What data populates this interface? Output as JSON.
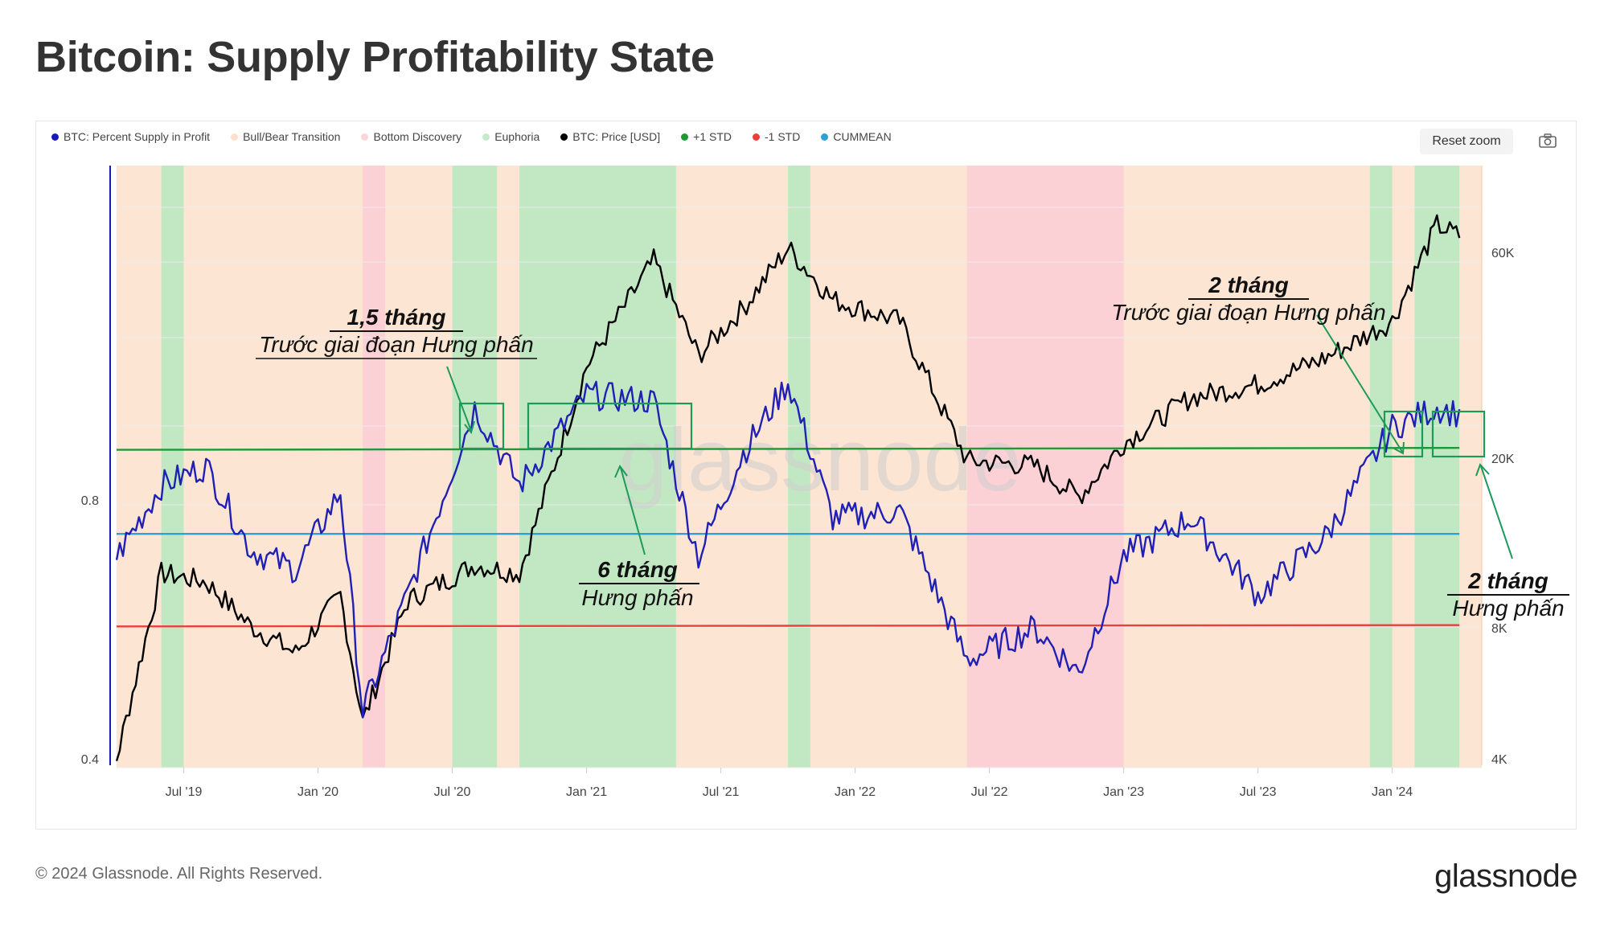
{
  "page": {
    "title": "Bitcoin: Supply Profitability State",
    "copyright": "© 2024 Glassnode. All Rights Reserved.",
    "brand": "glassnode",
    "watermark": "glassnode",
    "reset_zoom_label": "Reset zoom"
  },
  "legend": [
    {
      "label": "BTC: Percent Supply in Profit",
      "color": "#1a1ab8"
    },
    {
      "label": "Bull/Bear Transition",
      "color": "#fce0cc"
    },
    {
      "label": "Bottom Discovery",
      "color": "#fdd5d9"
    },
    {
      "label": "Euphoria",
      "color": "#c5eac8"
    },
    {
      "label": "BTC: Price [USD]",
      "color": "#000000"
    },
    {
      "label": "+1 STD",
      "color": "#1d9a34"
    },
    {
      "label": "-1 STD",
      "color": "#e8413c"
    },
    {
      "label": "CUMMEAN",
      "color": "#2ea0d8"
    }
  ],
  "annotations": [
    {
      "bold": "1,5 tháng",
      "text": "Trước giai đoạn Hưng phấn"
    },
    {
      "bold": "6 tháng",
      "text": "Hưng phấn"
    },
    {
      "bold": "2 tháng",
      "text": "Trước giai đoạn Hưng phấn"
    },
    {
      "bold": "2 tháng",
      "text": "Hưng phấn"
    }
  ],
  "chart_data": {
    "type": "line",
    "x_ticks": [
      "Jul '19",
      "Jan '20",
      "Jul '20",
      "Jan '21",
      "Jul '21",
      "Jan '22",
      "Jul '22",
      "Jan '23",
      "Jul '23",
      "Jan '24"
    ],
    "left_axis_ticks": [
      "0.8",
      "0.4"
    ],
    "right_axis_ticks": [
      "60K",
      "20K",
      "8K",
      "4K"
    ],
    "right_axis_scale": "log",
    "bands": [
      {
        "state": "Bull/Bear Transition",
        "from": "2019-04",
        "to": "2019-07"
      },
      {
        "state": "Euphoria",
        "from": "2019-06",
        "to": "2019-07"
      },
      {
        "state": "Bottom Discovery",
        "from": "2020-03",
        "to": "2020-04"
      },
      {
        "state": "Euphoria",
        "from": "2020-07",
        "to": "2020-09"
      },
      {
        "state": "Euphoria",
        "from": "2020-10",
        "to": "2021-05"
      },
      {
        "state": "Euphoria",
        "from": "2021-10",
        "to": "2021-11"
      },
      {
        "state": "Bottom Discovery",
        "from": "2022-06",
        "to": "2023-01"
      },
      {
        "state": "Euphoria",
        "from": "2023-12",
        "to": "2024-01"
      },
      {
        "state": "Euphoria",
        "from": "2024-02",
        "to": "2024-04"
      }
    ],
    "series": [
      {
        "name": "BTC: Percent Supply in Profit",
        "x": [
          "2019-04",
          "2019-06",
          "2019-08",
          "2019-10",
          "2019-12",
          "2020-02",
          "2020-03",
          "2020-05",
          "2020-08",
          "2020-10",
          "2021-01",
          "2021-04",
          "2021-06",
          "2021-08",
          "2021-10",
          "2021-12",
          "2022-03",
          "2022-06",
          "2022-09",
          "2022-11",
          "2023-01",
          "2023-04",
          "2023-07",
          "2023-10",
          "2024-01",
          "2024-03",
          "2024-04"
        ],
        "y": [
          0.72,
          0.83,
          0.86,
          0.73,
          0.7,
          0.82,
          0.48,
          0.66,
          0.95,
          0.83,
          0.97,
          0.96,
          0.72,
          0.88,
          0.99,
          0.78,
          0.79,
          0.56,
          0.61,
          0.54,
          0.72,
          0.78,
          0.66,
          0.75,
          0.92,
          0.95,
          0.94
        ]
      },
      {
        "name": "BTC: Price [USD]",
        "x": [
          "2019-04",
          "2019-06",
          "2019-08",
          "2019-10",
          "2019-12",
          "2020-02",
          "2020-03",
          "2020-05",
          "2020-08",
          "2020-10",
          "2021-01",
          "2021-04",
          "2021-06",
          "2021-08",
          "2021-10",
          "2021-12",
          "2022-03",
          "2022-06",
          "2022-09",
          "2022-11",
          "2023-01",
          "2023-04",
          "2023-07",
          "2023-10",
          "2024-01",
          "2024-03",
          "2024-04"
        ],
        "y": [
          4100,
          11000,
          10500,
          8300,
          7200,
          9800,
          5000,
          9500,
          11500,
          11000,
          33000,
          58000,
          35000,
          45000,
          62000,
          47000,
          42000,
          20000,
          19500,
          16500,
          22000,
          28000,
          30000,
          34500,
          42000,
          70000,
          66000
        ]
      },
      {
        "name": "+1 STD",
        "x": [
          "2019-04",
          "2024-04"
        ],
        "y": [
          0.885,
          0.888
        ]
      },
      {
        "name": "CUMMEAN",
        "x": [
          "2019-04",
          "2024-04"
        ],
        "y": [
          0.755,
          0.755
        ]
      },
      {
        "name": "-1 STD",
        "x": [
          "2019-04",
          "2024-04"
        ],
        "y": [
          0.612,
          0.614
        ]
      }
    ]
  }
}
